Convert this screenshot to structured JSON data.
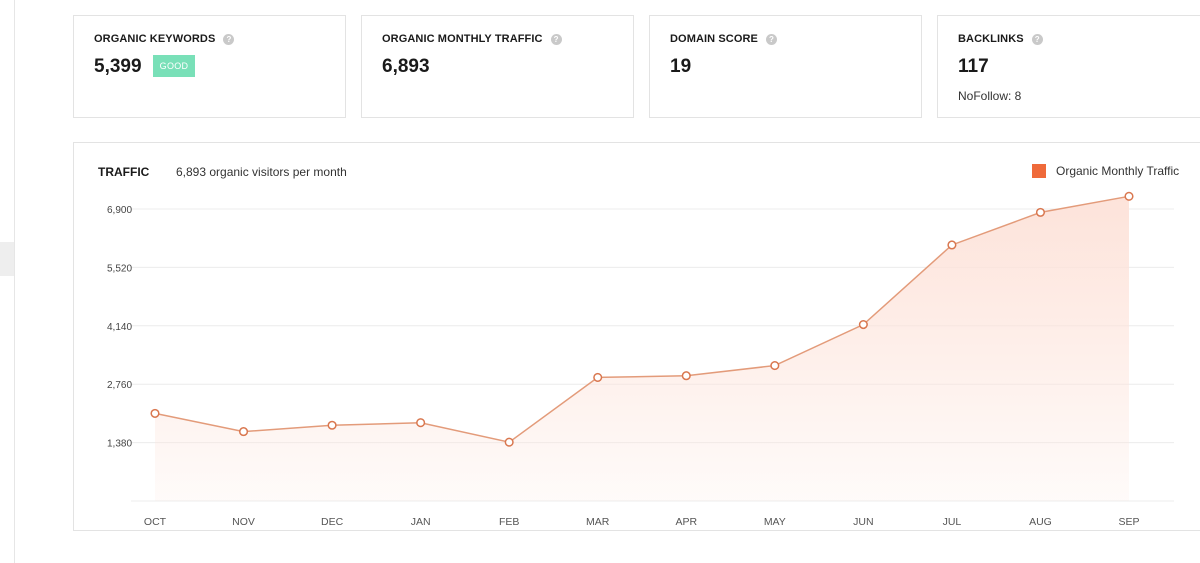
{
  "stats": {
    "keywords": {
      "title": "ORGANIC KEYWORDS",
      "value": "5,399",
      "badge": "GOOD",
      "help": "?"
    },
    "traffic": {
      "title": "ORGANIC MONTHLY TRAFFIC",
      "value": "6,893",
      "help": "?"
    },
    "domain_score": {
      "title": "DOMAIN SCORE",
      "value": "19",
      "help": "?"
    },
    "backlinks": {
      "title": "BACKLINKS",
      "value": "117",
      "sub": "NoFollow: 8",
      "help": "?"
    }
  },
  "traffic_panel": {
    "title": "TRAFFIC",
    "subtitle": "6,893 organic visitors per month"
  },
  "colors": {
    "line": "#e39b7a",
    "fill": "#fde3da",
    "legend": "#ef6a3a",
    "badge": "#79e0b8"
  },
  "chart_data": {
    "type": "area",
    "categories": [
      "OCT",
      "NOV",
      "DEC",
      "JAN",
      "FEB",
      "MAR",
      "APR",
      "MAY",
      "JUN",
      "JUL",
      "AUG",
      "SEP"
    ],
    "series": [
      {
        "name": "Organic Monthly Traffic",
        "values": [
          2070,
          1640,
          1790,
          1850,
          1390,
          2920,
          2960,
          3200,
          4170,
          6050,
          6820,
          7200
        ]
      }
    ],
    "yticks": [
      "1,380",
      "2,760",
      "4,140",
      "5,520",
      "6,900"
    ],
    "ylim": [
      0,
      6900
    ],
    "grid": true,
    "legend_position": "top-right"
  }
}
